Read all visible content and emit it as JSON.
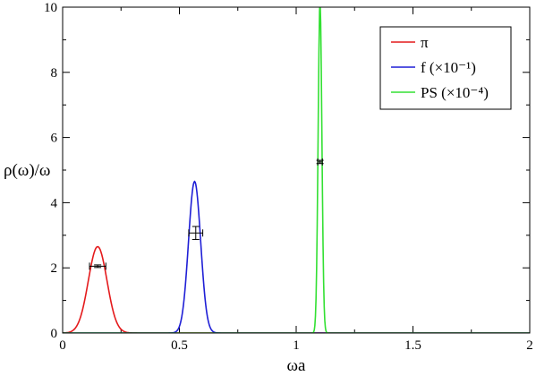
{
  "chart_data": {
    "type": "line",
    "xlabel": "ωa",
    "ylabel": "ρ(ω)/ω",
    "xlim": [
      0,
      2
    ],
    "ylim": [
      0,
      10
    ],
    "xticks": [
      "0",
      "0.5",
      "1",
      "1.5",
      "2"
    ],
    "yticks": [
      "0",
      "2",
      "4",
      "6",
      "8",
      "10"
    ],
    "legend_position": "top-right",
    "series": [
      {
        "name": "π",
        "color": "#e41a1c",
        "center": 0.15,
        "peak": 2.65,
        "width": 0.04
      },
      {
        "name": "f (×10⁻¹)",
        "color": "#1f1fd6",
        "center": 0.565,
        "peak": 4.65,
        "width": 0.026
      },
      {
        "name": "PS (×10⁻⁴)",
        "color": "#33e033",
        "center": 1.102,
        "peak": 10.2,
        "width": 0.008
      }
    ],
    "error_points": [
      {
        "x": 0.15,
        "y": 2.05,
        "xerr": 0.035,
        "yerr": 0.04
      },
      {
        "x": 0.57,
        "y": 3.07,
        "xerr": 0.03,
        "yerr": 0.2
      },
      {
        "x": 1.102,
        "y": 5.25,
        "xerr": 0.01,
        "yerr": 0.05
      }
    ]
  }
}
